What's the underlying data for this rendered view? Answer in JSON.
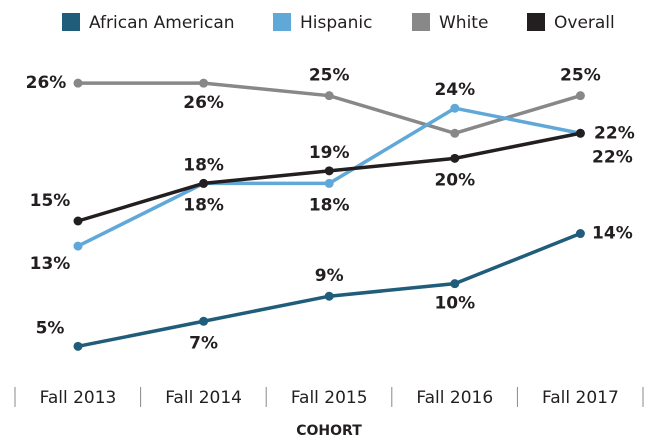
{
  "chart_data": {
    "type": "line",
    "categories": [
      "Fall 2013",
      "Fall 2014",
      "Fall 2015",
      "Fall 2016",
      "Fall 2017"
    ],
    "x_label": "COHORT",
    "ylim": [
      0,
      30
    ],
    "series": [
      {
        "name": "African American",
        "color": "#1f5d7a",
        "values": [
          5,
          7,
          9,
          10,
          14
        ],
        "value_labels": [
          "5%",
          "7%",
          "9%",
          "10%",
          "14%"
        ]
      },
      {
        "name": "Hispanic",
        "color": "#5fa8d8",
        "values": [
          13,
          18,
          18,
          24,
          22
        ],
        "value_labels": [
          "13%",
          "18%",
          "18%",
          "24%",
          "22%"
        ]
      },
      {
        "name": "White",
        "color": "#888888",
        "values": [
          26,
          26,
          25,
          22,
          25
        ],
        "value_labels": [
          "26%",
          "26%",
          "25%",
          null,
          "25%"
        ]
      },
      {
        "name": "Overall",
        "color": "#231f20",
        "values": [
          15,
          18,
          19,
          20,
          22
        ],
        "value_labels": [
          "15%",
          "18%",
          "19%",
          "20%",
          "22%"
        ]
      }
    ]
  }
}
